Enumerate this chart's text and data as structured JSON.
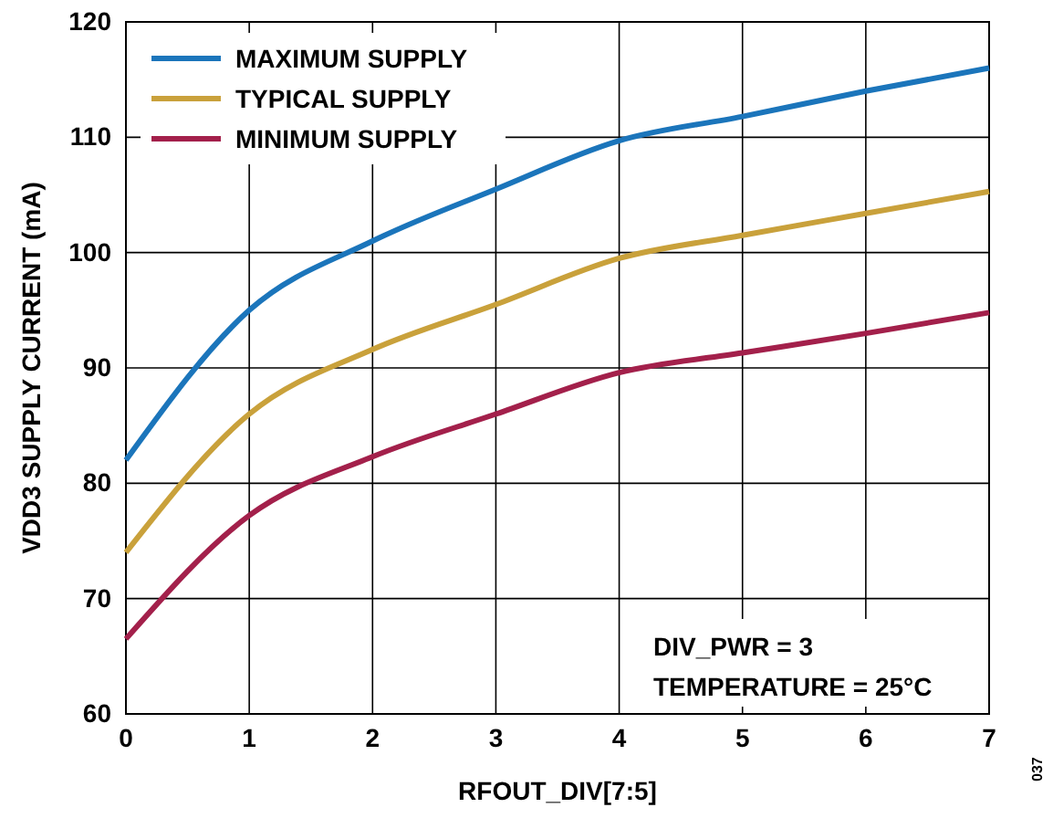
{
  "chart_data": {
    "type": "line",
    "xlabel": "RFOUT_DIV[7:5]",
    "ylabel": "VDD3 SUPPLY CURRENT (mA)",
    "x": [
      0,
      1,
      2,
      3,
      4,
      5,
      6,
      7
    ],
    "series": [
      {
        "name": "MAXIMUM SUPPLY",
        "color": "#1b75bb",
        "values": [
          82,
          95,
          101,
          105.5,
          109.7,
          111.8,
          114,
          116
        ]
      },
      {
        "name": "TYPICAL SUPPLY",
        "color": "#c9a13b",
        "values": [
          74,
          86,
          91.6,
          95.5,
          99.5,
          101.5,
          103.4,
          105.3
        ]
      },
      {
        "name": "MINIMUM SUPPLY",
        "color": "#a3204b",
        "values": [
          66.5,
          77.2,
          82.3,
          86,
          89.6,
          91.3,
          93,
          94.8
        ]
      }
    ],
    "xlim": [
      0,
      7
    ],
    "xticks": [
      0,
      1,
      2,
      3,
      4,
      5,
      6,
      7
    ],
    "ylim": [
      60,
      120
    ],
    "yticks": [
      60,
      70,
      80,
      90,
      100,
      110,
      120
    ],
    "grid": true,
    "legend": "top left",
    "marker": "none",
    "line_style": "solid",
    "annotations": [
      "DIV_PWR = 3",
      "TEMPERATURE = 25°C",
      "037"
    ]
  }
}
